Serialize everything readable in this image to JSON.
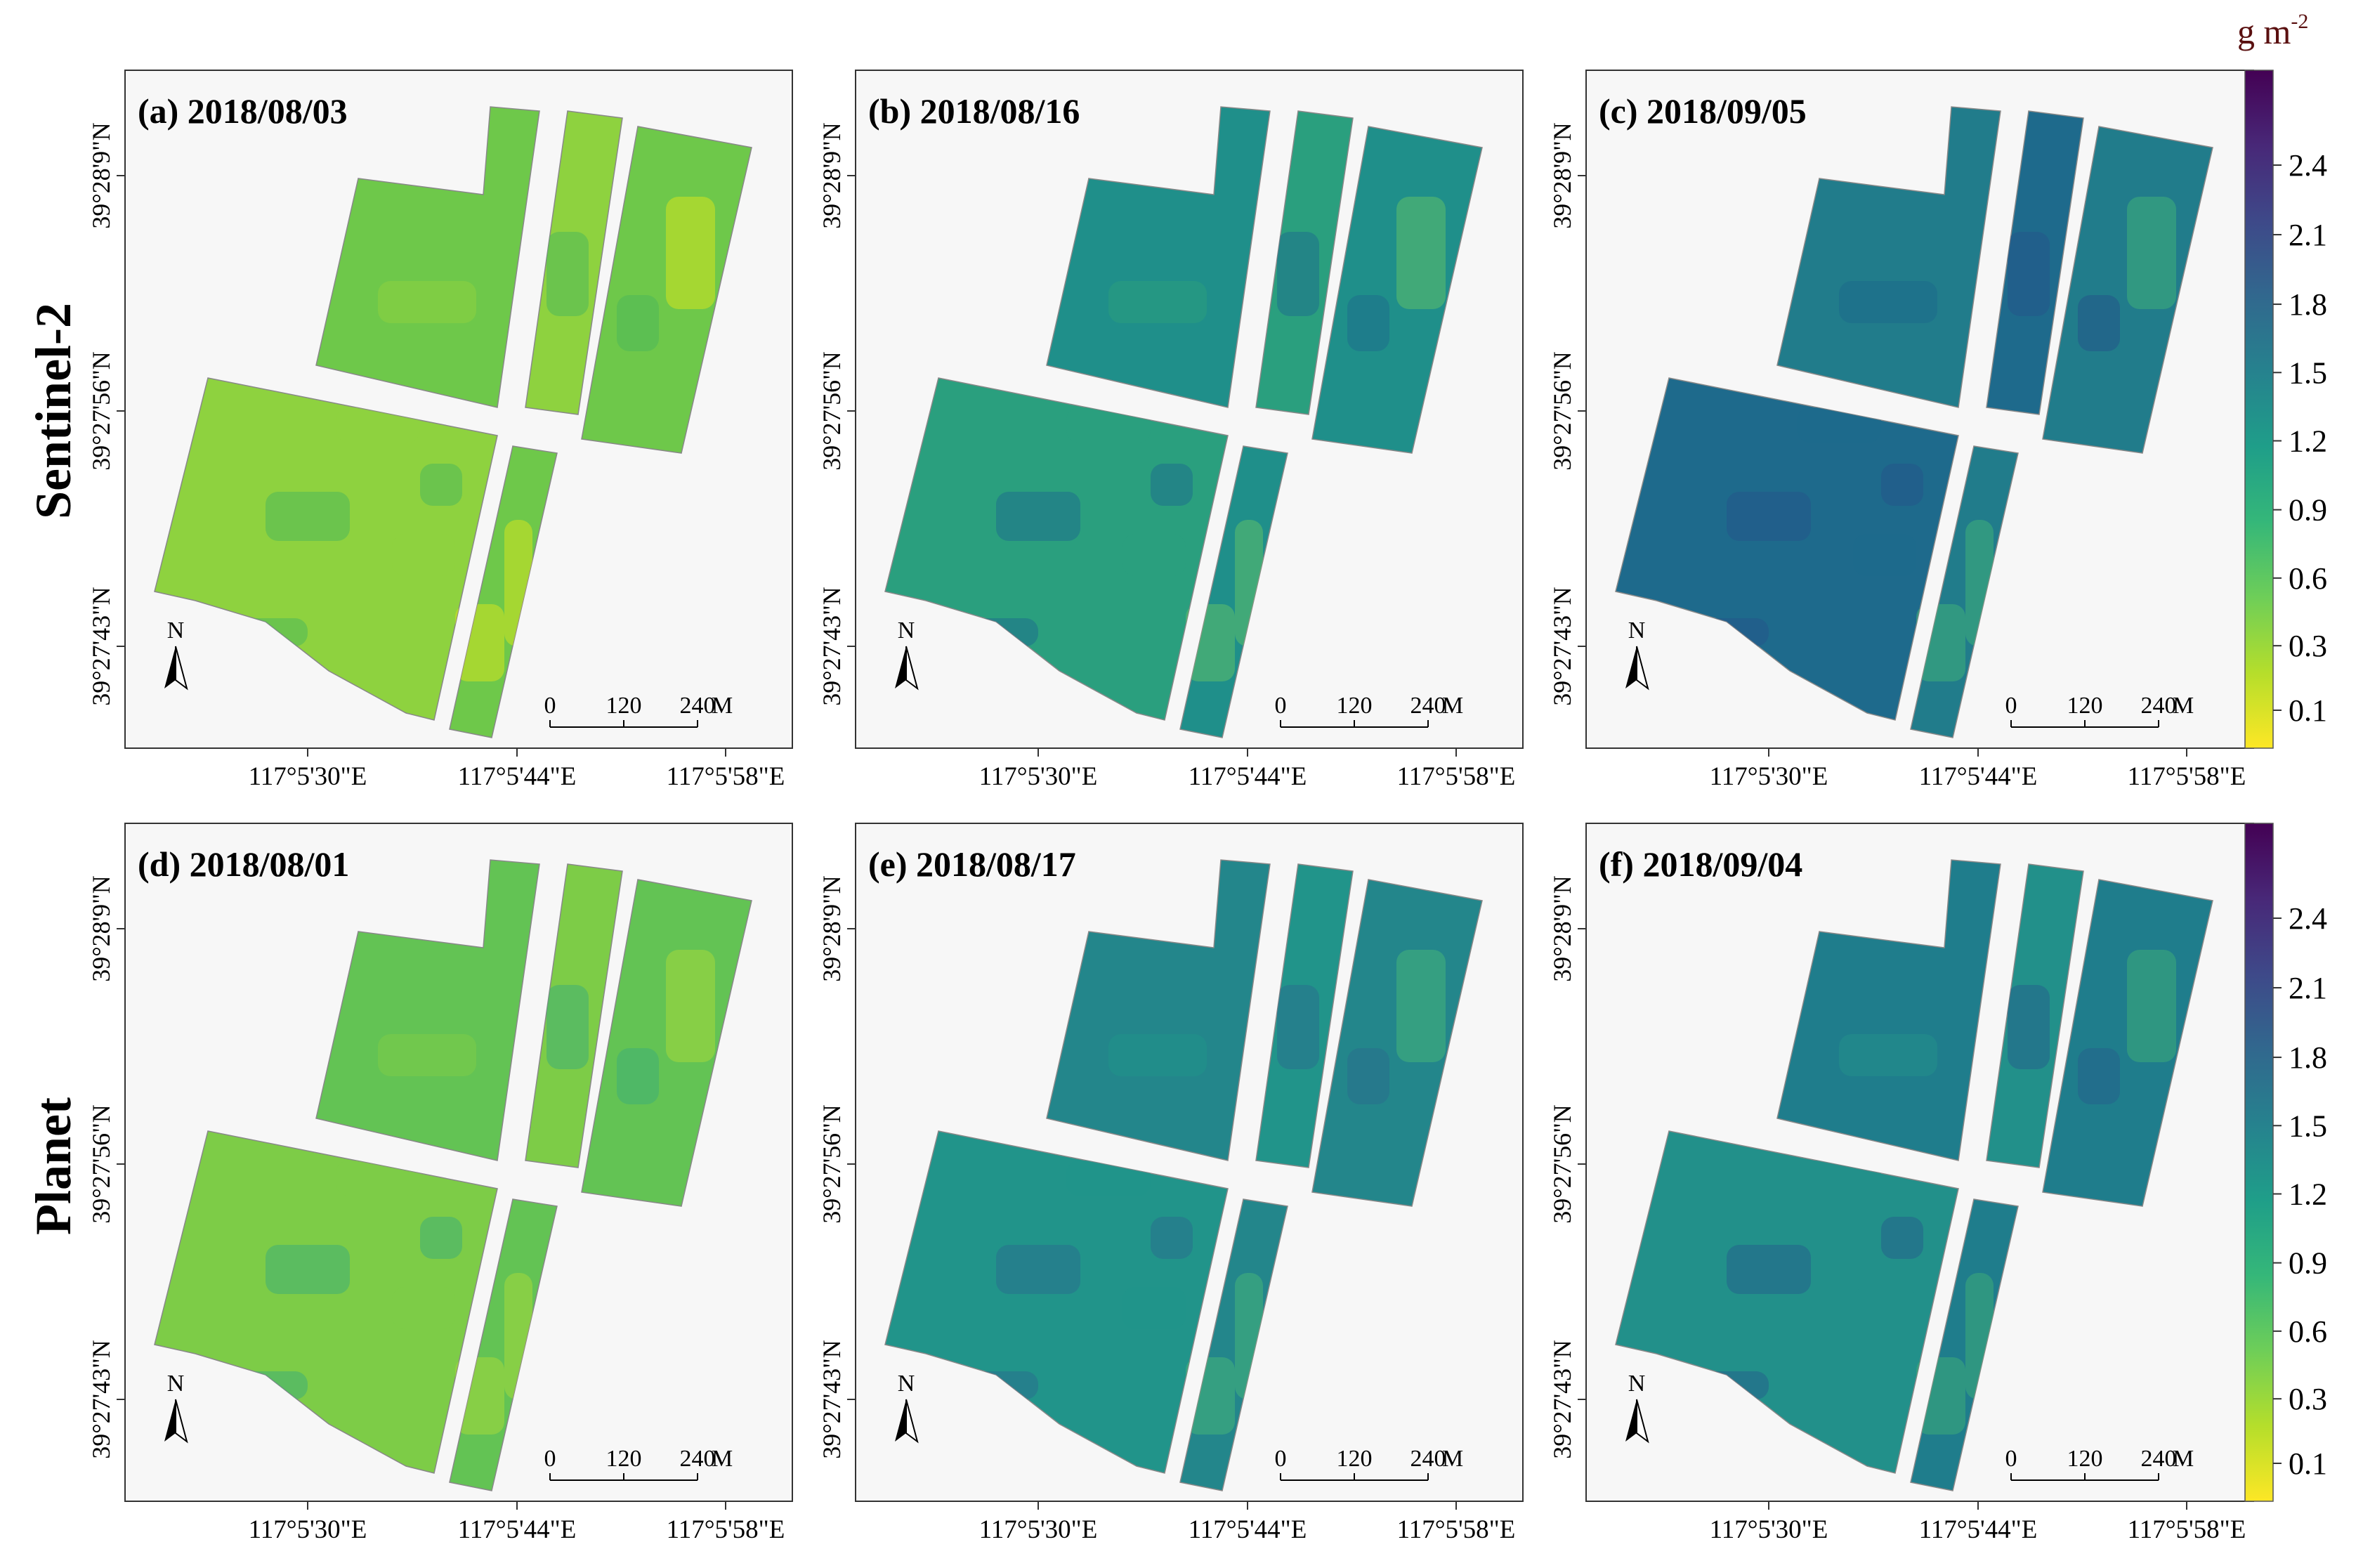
{
  "rows": [
    {
      "label": "Sentinel-2",
      "panels": [
        {
          "title": "(a) 2018/08/03",
          "palette": "s2_early"
        },
        {
          "title": "(b) 2018/08/16",
          "palette": "s2_mid"
        },
        {
          "title": "(c) 2018/09/05",
          "palette": "s2_late"
        }
      ]
    },
    {
      "label": "Planet",
      "panels": [
        {
          "title": "(d) 2018/08/01",
          "palette": "pl_early"
        },
        {
          "title": "(e) 2018/08/17",
          "palette": "pl_mid"
        },
        {
          "title": "(f) 2018/09/04",
          "palette": "pl_late"
        }
      ]
    }
  ],
  "lat_labels": [
    "39°28'9\"N",
    "39°27'56\"N",
    "39°27'43\"N"
  ],
  "lon_labels": [
    "117°5'30\"E",
    "117°5'44\"E",
    "117°5'58\"E"
  ],
  "north_arrow": "N",
  "scale_bar": {
    "ticks": [
      "0",
      "120",
      "240"
    ],
    "unit": "M"
  },
  "colorbar": {
    "unit": "g m",
    "unit_sup": "-2",
    "ticks": [
      "2.4",
      "2.1",
      "1.8",
      "1.5",
      "1.2",
      "0.9",
      "0.6",
      "0.3",
      "0.1"
    ],
    "colors": [
      "#fde725",
      "#b5de2b",
      "#6ece58",
      "#35b779",
      "#1f9e89",
      "#26828e",
      "#31688e",
      "#3e4989",
      "#482878",
      "#440154"
    ]
  },
  "palettes": {
    "s2_early": {
      "base": "#6ec84a",
      "alt": "#8ed23f",
      "hi": "#d4e31f",
      "edge": "#4fb85a"
    },
    "s2_mid": {
      "base": "#1f8f8a",
      "alt": "#2a9f7e",
      "hi": "#5cc06a",
      "edge": "#1d6f8c"
    },
    "s2_late": {
      "base": "#217c8b",
      "alt": "#1e6a8c",
      "hi": "#3fae7a",
      "edge": "#25568b"
    },
    "pl_early": {
      "base": "#63c354",
      "alt": "#7dcc47",
      "hi": "#a6d93a",
      "edge": "#3fae74"
    },
    "pl_mid": {
      "base": "#23868b",
      "alt": "#21948a",
      "hi": "#46b57a",
      "edge": "#2a6f8e"
    },
    "pl_late": {
      "base": "#1f7d8c",
      "alt": "#22908a",
      "hi": "#3cab79",
      "edge": "#24628c"
    }
  }
}
